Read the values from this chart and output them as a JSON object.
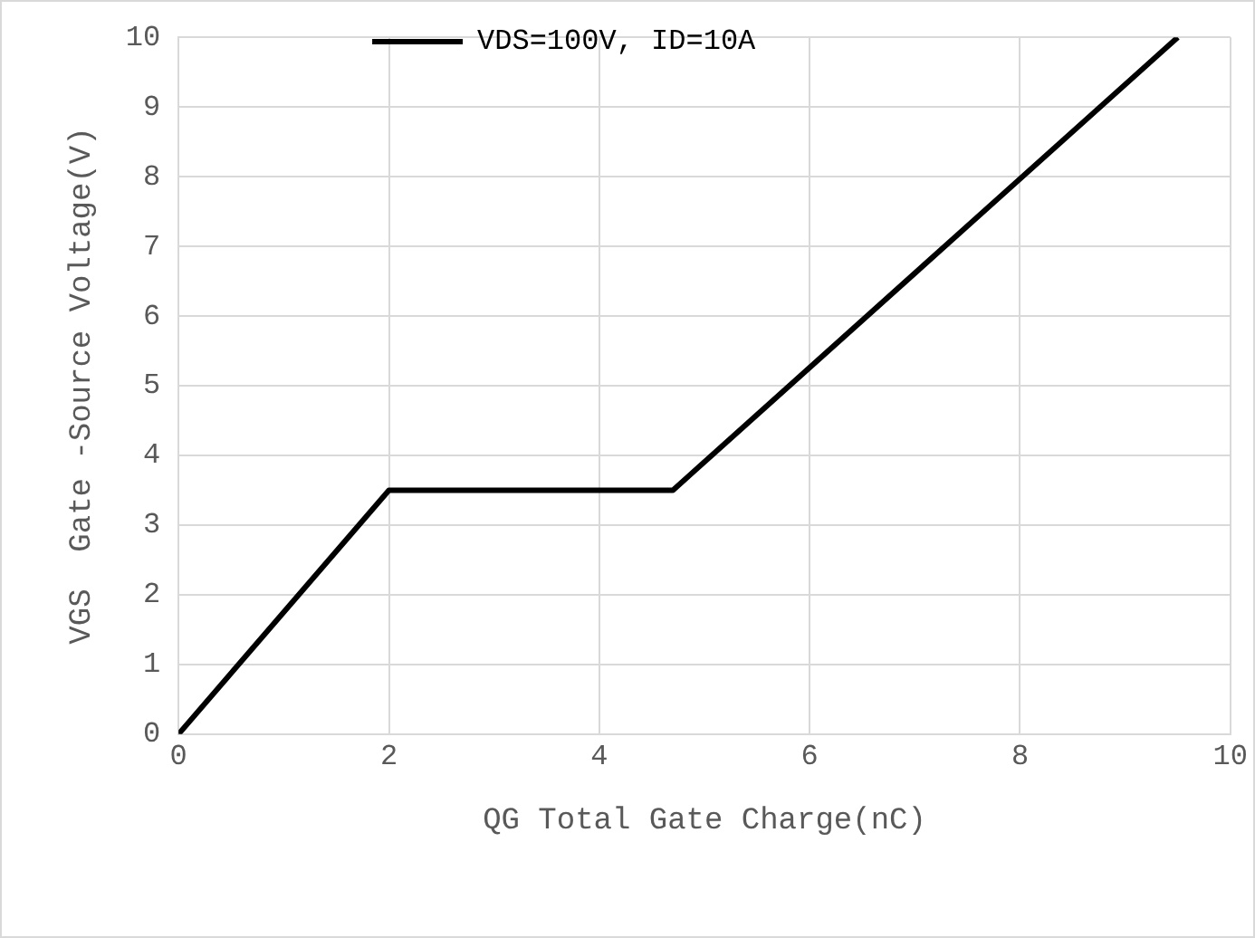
{
  "chart_data": {
    "type": "line",
    "xlabel": "QG Total Gate Charge(nC)",
    "ylabel": "VGS  Gate -Source Voltage(V)",
    "series": [
      {
        "name": "VDS=100V, ID=10A",
        "color": "#000000",
        "x": [
          0,
          2,
          4.7,
          9.5
        ],
        "values": [
          0,
          3.5,
          3.5,
          10
        ]
      }
    ],
    "xlim": [
      0,
      10
    ],
    "xticks": [
      0,
      2,
      4,
      6,
      8,
      10
    ],
    "ylim": [
      0,
      10
    ],
    "yticks": [
      0,
      1,
      2,
      3,
      4,
      5,
      6,
      7,
      8,
      9,
      10
    ],
    "grid": true,
    "legend": "top",
    "marker": "none",
    "line_style": "solid"
  }
}
